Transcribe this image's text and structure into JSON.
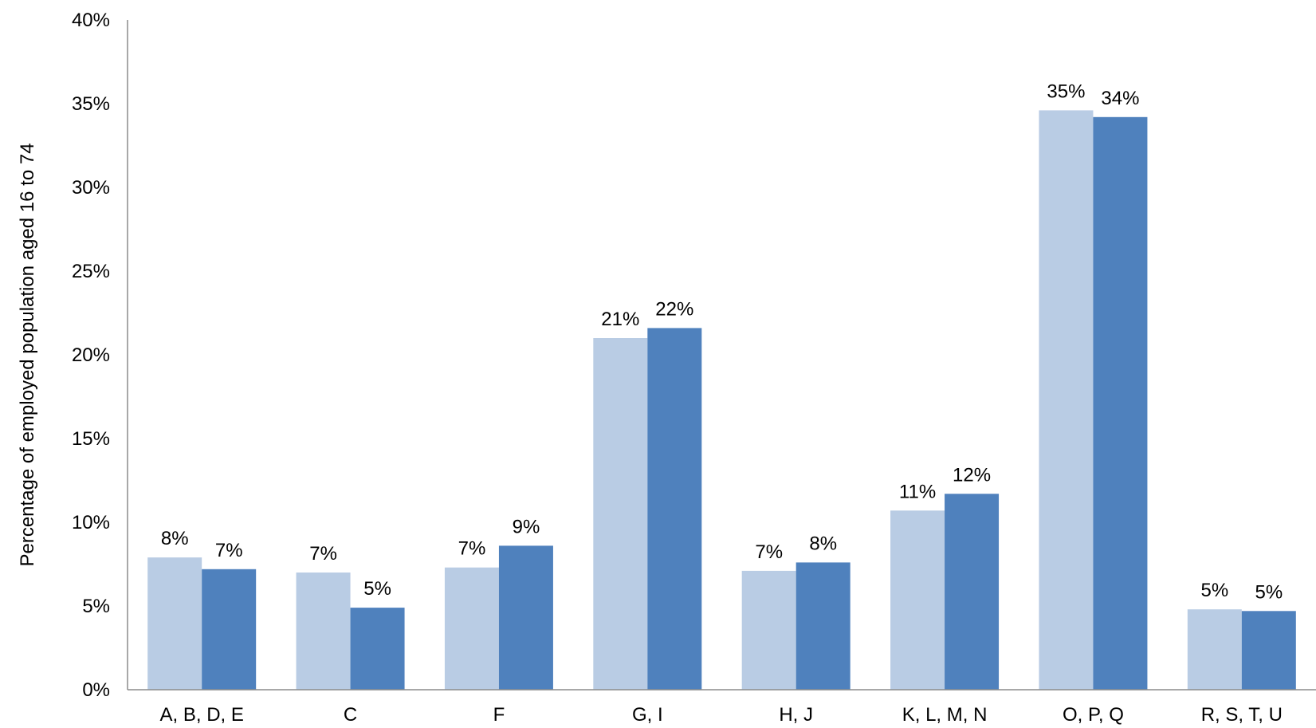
{
  "chart_data": {
    "type": "bar",
    "title": "",
    "xlabel": "",
    "ylabel": "Percentage of employed population aged 16 to 74",
    "ylim": [
      0,
      40
    ],
    "yticks": [
      "0%",
      "5%",
      "10%",
      "15%",
      "20%",
      "25%",
      "30%",
      "35%",
      "40%"
    ],
    "grid": false,
    "legend": "none",
    "categories": [
      "A, B, D, E",
      "C",
      "F",
      "G, I",
      "H, J",
      "K, L, M, N",
      "O, P, Q",
      "R, S, T, U"
    ],
    "series": [
      {
        "color": "#b9cce4",
        "values": [
          7.9,
          7.0,
          7.3,
          21.0,
          7.1,
          10.7,
          34.6,
          4.8
        ],
        "labels": [
          "8%",
          "7%",
          "7%",
          "21%",
          "7%",
          "11%",
          "35%",
          "5%"
        ]
      },
      {
        "color": "#4f81bd",
        "values": [
          7.2,
          4.9,
          8.6,
          21.6,
          7.6,
          11.7,
          34.2,
          4.7
        ],
        "labels": [
          "7%",
          "5%",
          "9%",
          "22%",
          "8%",
          "12%",
          "34%",
          "5%"
        ]
      }
    ]
  }
}
